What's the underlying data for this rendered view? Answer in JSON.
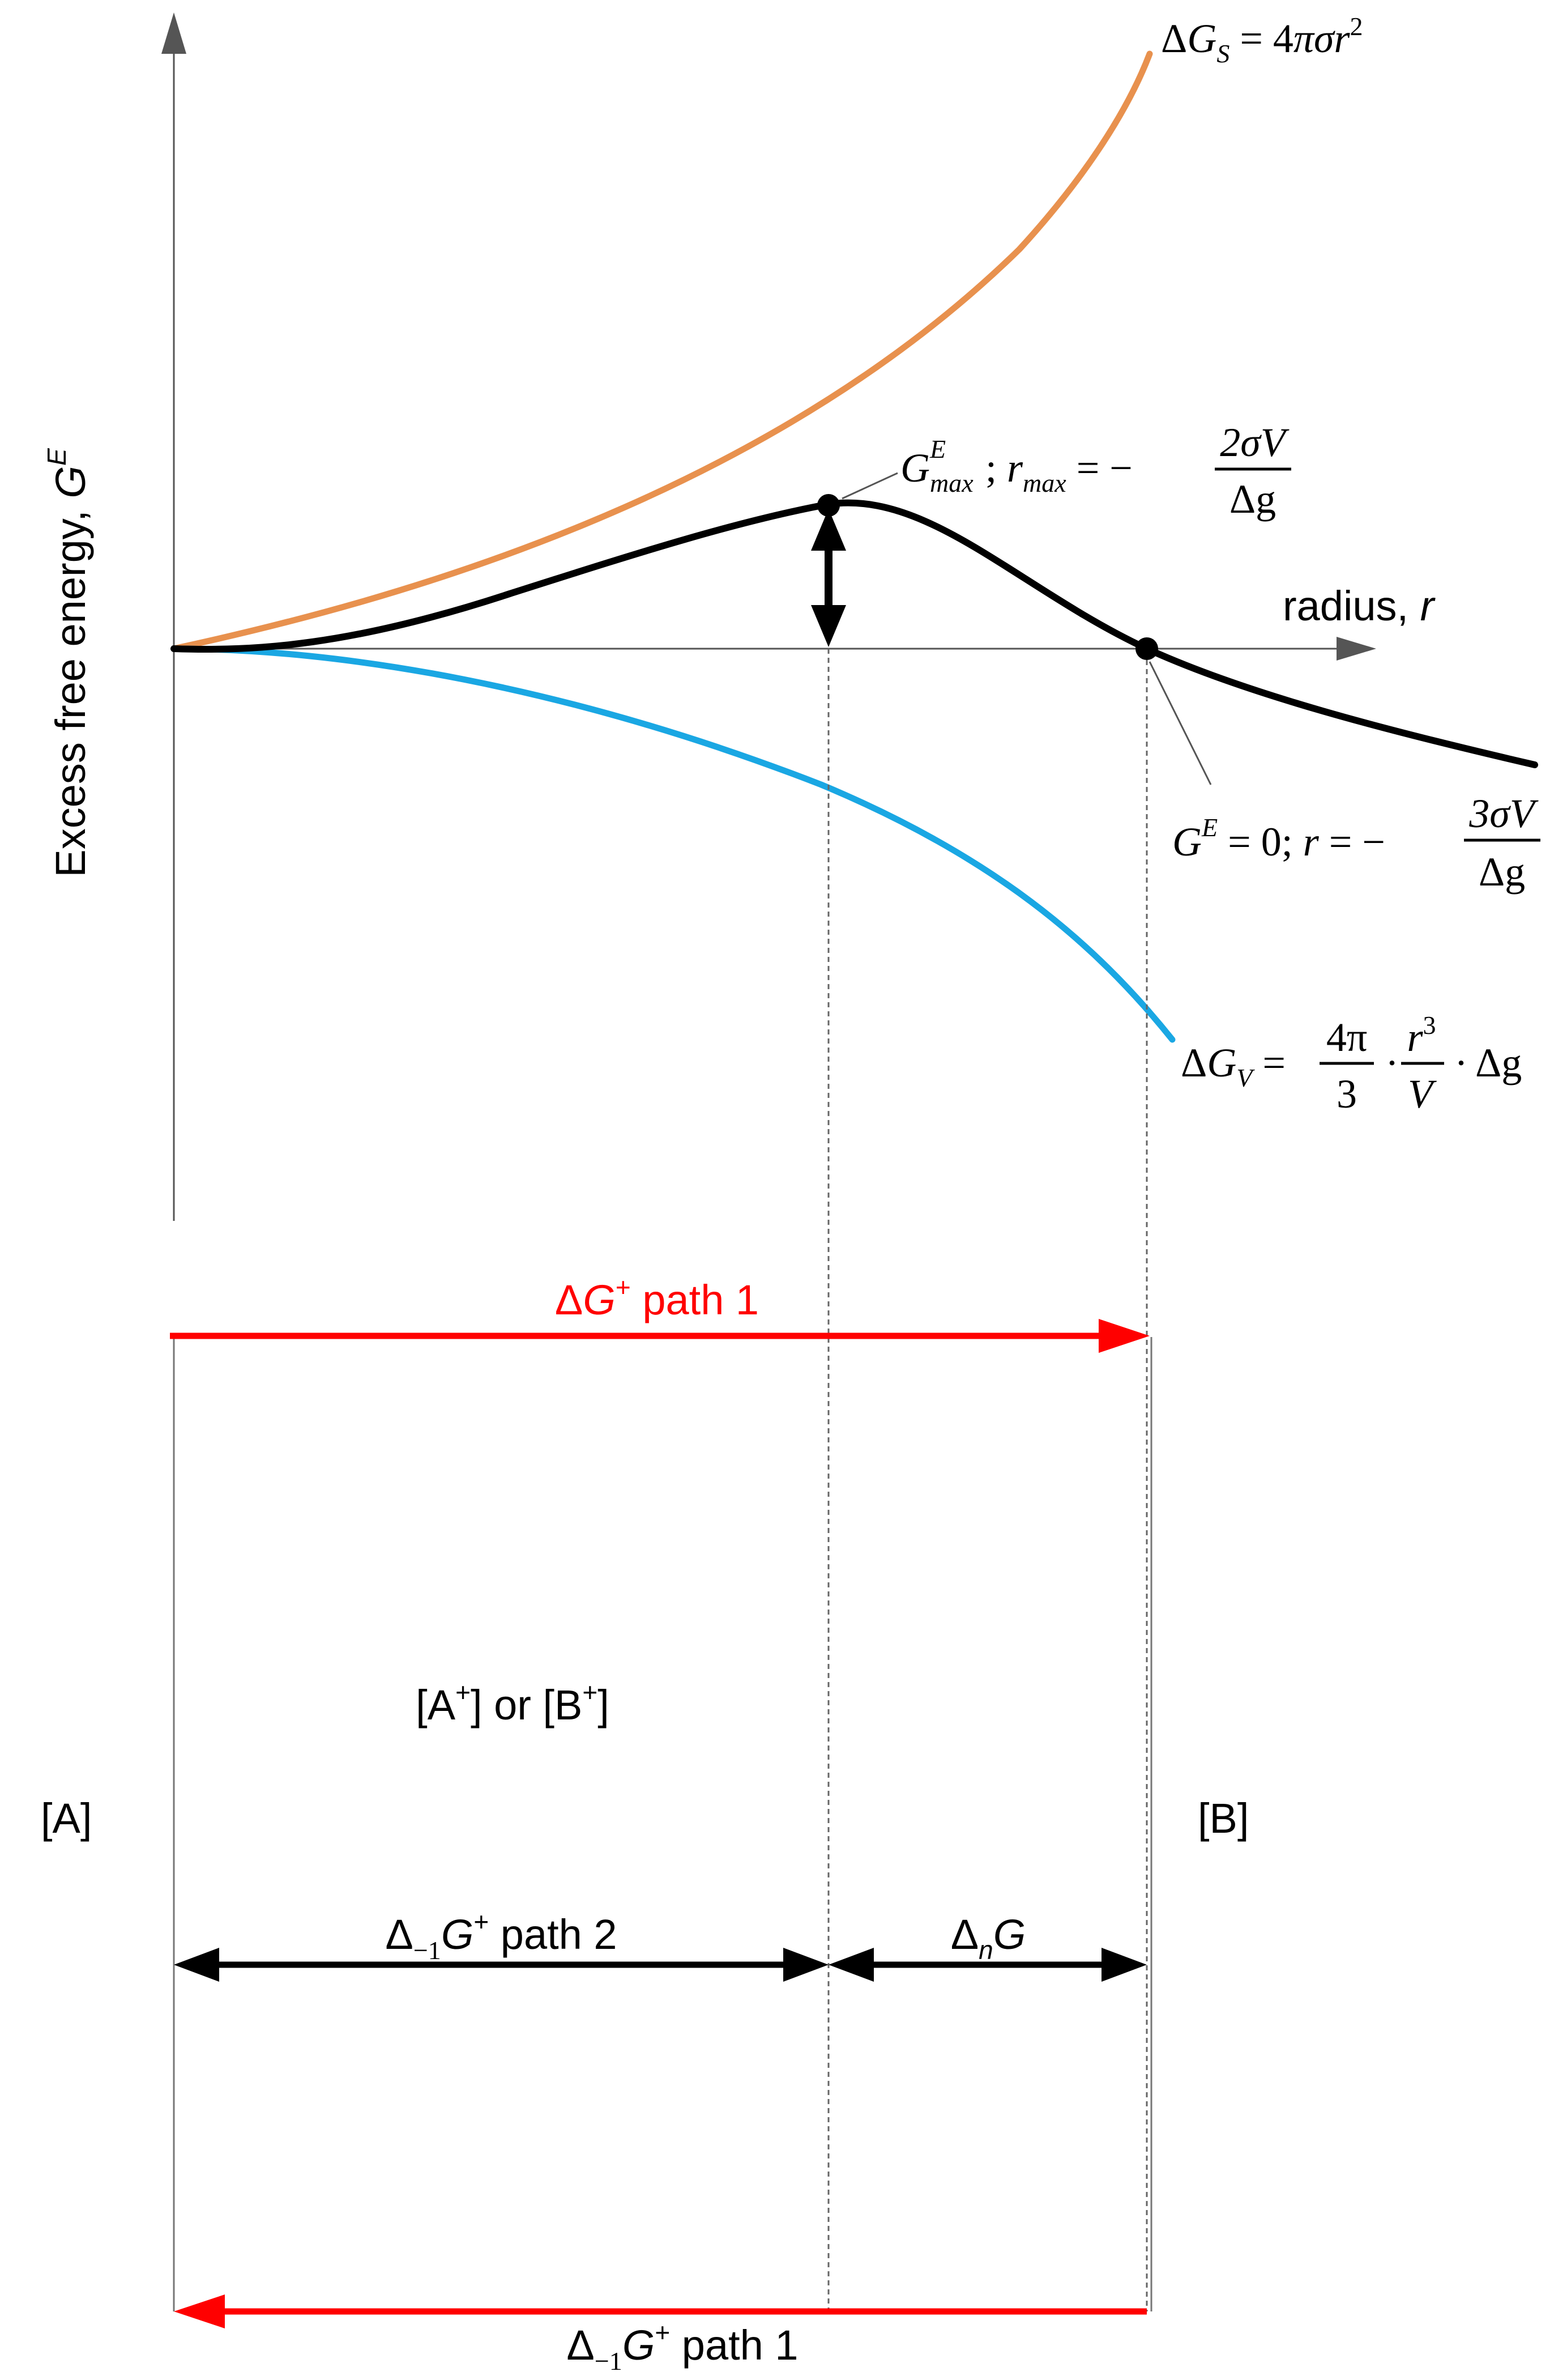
{
  "axes": {
    "y_label_main": "Excess free energy, ",
    "y_label_symbol": "G",
    "y_label_sup": "E",
    "x_label_main": "radius, ",
    "x_label_symbol": "r"
  },
  "curves": {
    "surface": {
      "delta": "Δ",
      "symbol": "G",
      "sub": "S",
      "rhs_eq": " = 4",
      "rhs_pi": "π",
      "rhs_sigma": "σ",
      "rhs_r": "r",
      "rhs_exp": "2",
      "color": "#e8914e"
    },
    "volume": {
      "delta": "Δ",
      "symbol": "G",
      "sub": "V",
      "eq": " = ",
      "num1": "4π",
      "den1": "3",
      "dot": "·",
      "num2": "r",
      "num2_exp": "3",
      "den2": "V",
      "tail": "Δg",
      "color": "#1aa7e3"
    },
    "excess": {
      "color": "#000000"
    }
  },
  "annotations": {
    "max_point": {
      "G": "G",
      "G_sup": "E",
      "G_sub": "max",
      "sep": " ; ",
      "r": "r",
      "r_sub": "max",
      "eq": " = −",
      "num": "2σV",
      "den": "Δg"
    },
    "zero_point": {
      "G": "G",
      "G_sup": "E",
      "eq1": " = 0; ",
      "r": "r",
      "eq2": " = −",
      "num": "3σV",
      "den": "Δg"
    }
  },
  "paths": {
    "dg_path1": {
      "delta": "Δ",
      "G": "G",
      "sup": "+",
      "text": " path 1",
      "color": "#ff0000"
    },
    "state_label": {
      "p1": "[A",
      "s1": "+",
      "p2": "] or [B",
      "s2": "+",
      "p3": "]"
    },
    "left_state": "[A]",
    "right_state": "[B]",
    "dm1g_path2": {
      "delta": "Δ",
      "sub": "−1",
      "G": "G",
      "sup": "+",
      "text": " path 2"
    },
    "dng": {
      "delta": "Δ",
      "sub": "n",
      "G": "G"
    },
    "dm1g_path1": {
      "delta": "Δ",
      "sub": "−1",
      "G": "G",
      "sup": "+",
      "text": " path 1",
      "color": "#ff0000"
    }
  }
}
